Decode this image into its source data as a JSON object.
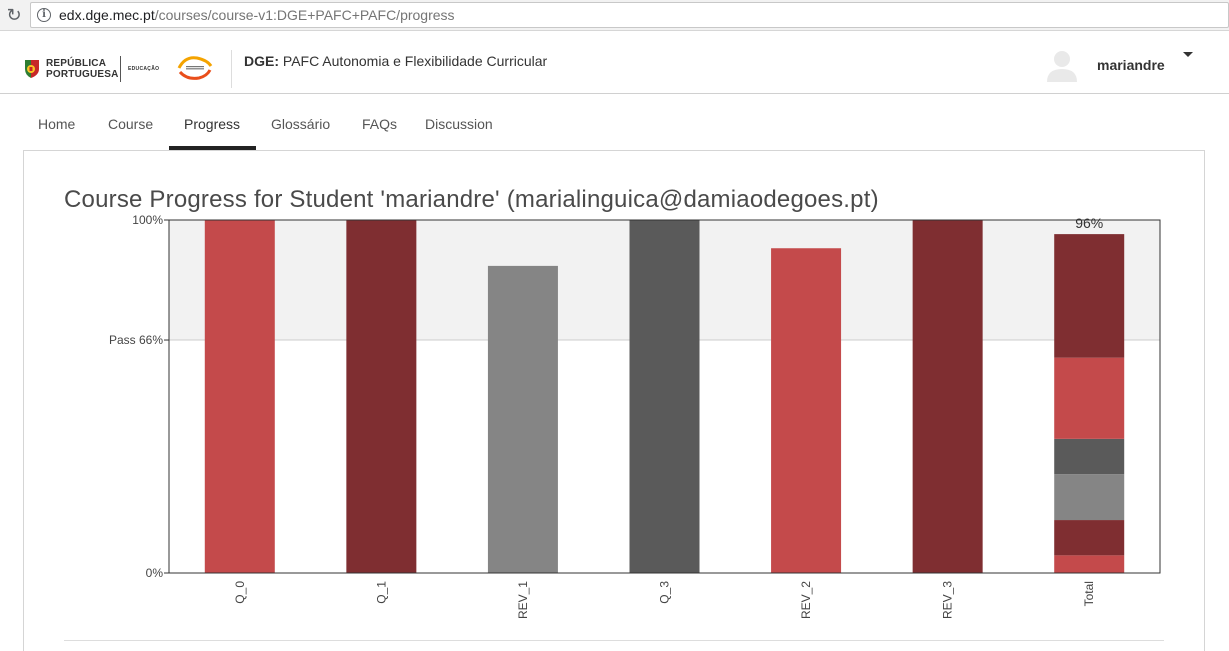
{
  "browser": {
    "url_host": "edx.dge.mec.pt",
    "url_path": "/courses/course-v1:DGE+PAFC+PAFC/progress"
  },
  "header": {
    "logo_text_line1": "REPÚBLICA",
    "logo_text_line2": "PORTUGUESA",
    "logo_edu": "EDUCAÇÃO",
    "org": "DGE:",
    "course_name": "PAFC Autonomia e Flexibilidade Curricular",
    "username": "mariandre"
  },
  "nav": {
    "tabs": [
      {
        "label": "Home"
      },
      {
        "label": "Course"
      },
      {
        "label": "Progress",
        "active": true
      },
      {
        "label": "Glossário"
      },
      {
        "label": "FAQs"
      },
      {
        "label": "Discussion"
      }
    ]
  },
  "page": {
    "title": "Course Progress for Student 'mariandre' (marialinguica@damiaodegoes.pt)"
  },
  "colors": {
    "red": "#c44a4b",
    "dark_red": "#7f2e31",
    "gray": "#858585",
    "dark_gray": "#5a5a5a",
    "pass_band": "#f2f2f2"
  },
  "chart_data": {
    "type": "bar",
    "categories": [
      "Q_0",
      "Q_1",
      "REV_1",
      "Q_3",
      "REV_2",
      "REV_3",
      "Total"
    ],
    "values": [
      100,
      100,
      87,
      100,
      92,
      100,
      96
    ],
    "bar_colors": [
      "red",
      "dark_red",
      "gray",
      "dark_gray",
      "red",
      "dark_red",
      "stacked"
    ],
    "total_stack": [
      {
        "color": "red",
        "value": 5
      },
      {
        "color": "dark_red",
        "value": 10
      },
      {
        "color": "gray",
        "value": 13
      },
      {
        "color": "dark_gray",
        "value": 10
      },
      {
        "color": "red",
        "value": 23
      },
      {
        "color": "dark_red",
        "value": 35
      }
    ],
    "total_label": "96%",
    "ylim": [
      0,
      100
    ],
    "yticks": [
      {
        "value": 100,
        "label": "100%"
      },
      {
        "value": 66,
        "label": "Pass 66%"
      },
      {
        "value": 0,
        "label": "0%"
      }
    ],
    "pass_threshold": 66
  }
}
